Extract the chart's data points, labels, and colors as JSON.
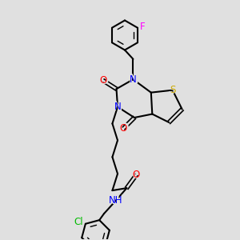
{
  "bg_color": "#e0e0e0",
  "bond_color": "#000000",
  "bond_width": 1.5,
  "atom_colors": {
    "N": "#0000ff",
    "O": "#ff0000",
    "S": "#ccaa00",
    "F": "#ff00ff",
    "Cl": "#00bb00",
    "H": "#555555",
    "C": "#000000"
  },
  "font_size": 8.5,
  "fig_size": [
    3.0,
    3.0
  ],
  "dpi": 100
}
